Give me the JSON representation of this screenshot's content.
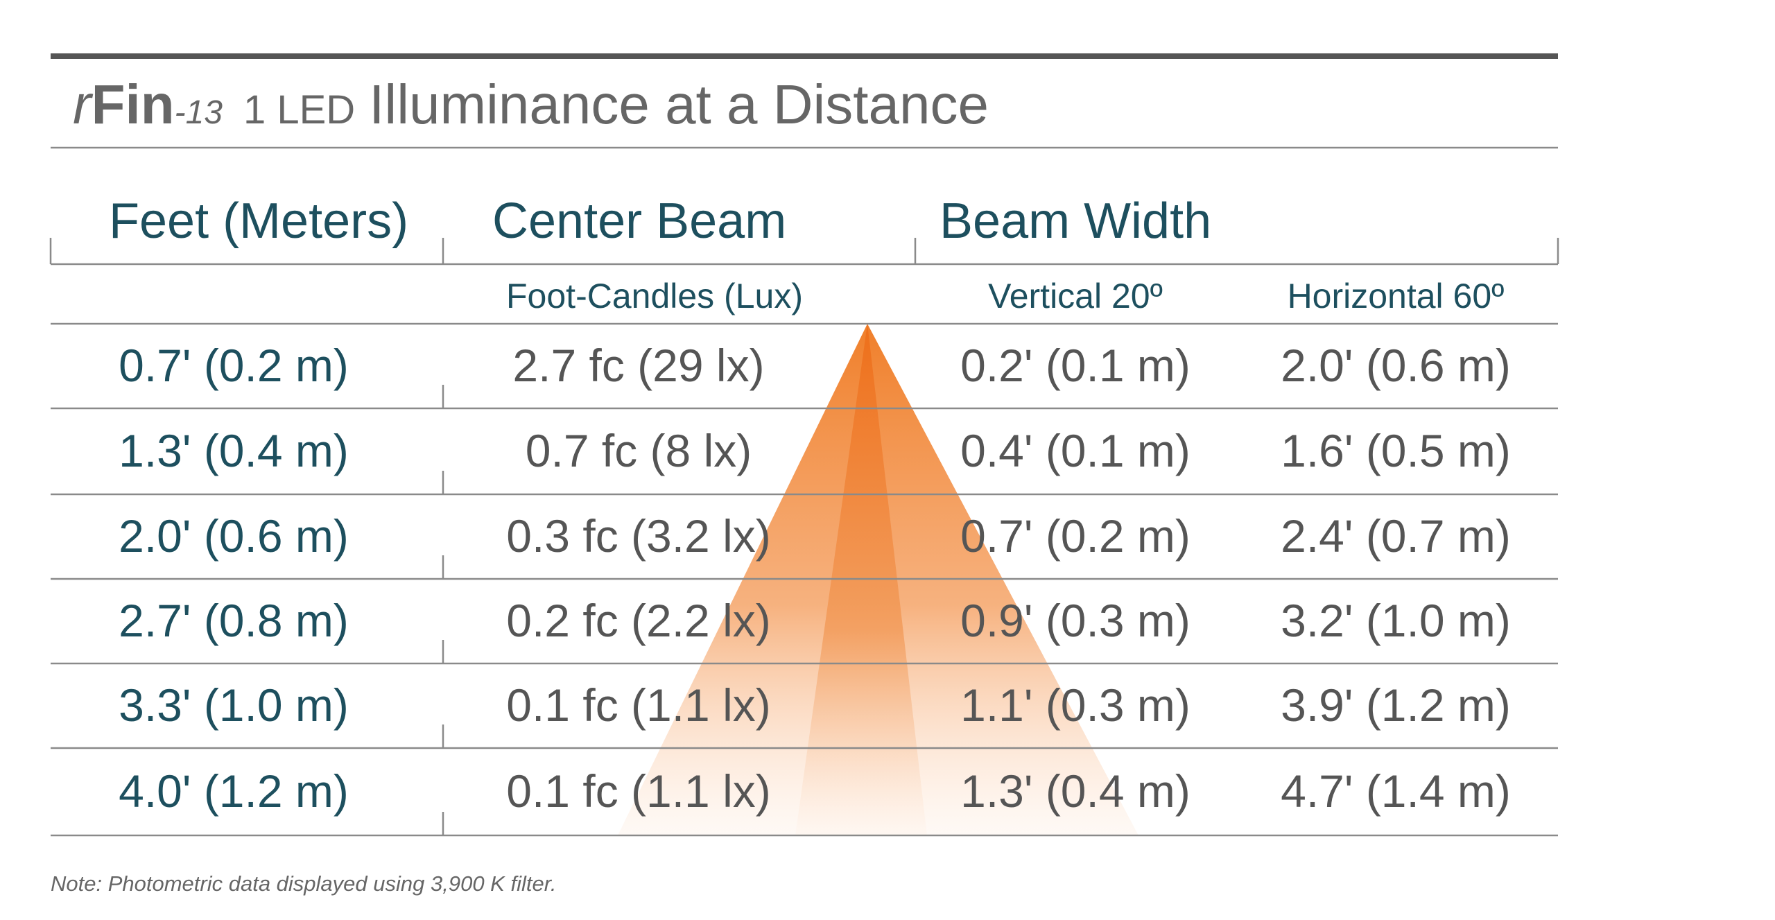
{
  "title": {
    "prefix": "r",
    "brand": "Fin",
    "model": "-13",
    "led": "1 LED",
    "text": "Illuminance at a Distance"
  },
  "table": {
    "header": [
      "Feet (Meters)",
      "Center Beam",
      "Beam Width"
    ],
    "subheader": [
      "Foot-Candles (Lux)",
      "Vertical 20º",
      "Horizontal 60º"
    ],
    "rows": [
      [
        "0.7' (0.2 m)",
        "2.7 fc (29 lx)",
        "0.2' (0.1 m)",
        "2.0' (0.6 m)"
      ],
      [
        "1.3' (0.4 m)",
        "0.7 fc (8 lx)",
        "0.4' (0.1 m)",
        "1.6' (0.5 m)"
      ],
      [
        "2.0' (0.6 m)",
        "0.3 fc (3.2 lx)",
        "0.7' (0.2 m)",
        "2.4' (0.7 m)"
      ],
      [
        "2.7' (0.8 m)",
        "0.2 fc (2.2 lx)",
        "0.9' (0.3 m)",
        "3.2' (1.0 m)"
      ],
      [
        "3.3' (1.0 m)",
        "0.1 fc (1.1 lx)",
        "1.1' (0.3 m)",
        "3.9' (1.2 m)"
      ],
      [
        "4.0' (1.2 m)",
        "0.1 fc (1.1 lx)",
        "1.3' (0.4 m)",
        "4.7' (1.4 m)"
      ]
    ]
  },
  "note": "Note: Photometric data displayed using 3,900 K filter."
}
